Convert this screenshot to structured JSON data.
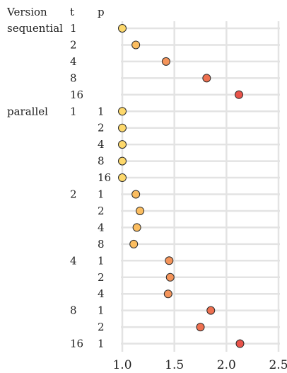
{
  "chart_data": {
    "type": "scatter",
    "orientation": "horizontal dot plot",
    "headers": [
      "Version",
      "t",
      "p"
    ],
    "xlim": [
      1.0,
      2.5
    ],
    "xticks": [
      1.0,
      1.5,
      2.0,
      2.5
    ],
    "xtick_labels": [
      "1.0",
      "1.5",
      "2.0",
      "2.5"
    ],
    "grid": true,
    "colors": {
      "low": "#fdd86b",
      "mid": "#f9a75a",
      "high": "#e8534a"
    },
    "rows": [
      {
        "version": "sequential",
        "t": "1",
        "p": "",
        "value": 1.0,
        "color": "#fdd86b"
      },
      {
        "version": "",
        "t": "2",
        "p": "",
        "value": 1.13,
        "color": "#fbbd60"
      },
      {
        "version": "",
        "t": "4",
        "p": "",
        "value": 1.42,
        "color": "#f4945a"
      },
      {
        "version": "",
        "t": "8",
        "p": "",
        "value": 1.81,
        "color": "#ee7050"
      },
      {
        "version": "",
        "t": "16",
        "p": "",
        "value": 2.12,
        "color": "#e8534a"
      },
      {
        "version": "parallel",
        "t": "1",
        "p": "1",
        "value": 1.0,
        "color": "#fdd86b"
      },
      {
        "version": "",
        "t": "",
        "p": "2",
        "value": 1.0,
        "color": "#fdd86b"
      },
      {
        "version": "",
        "t": "",
        "p": "4",
        "value": 1.0,
        "color": "#fdd86b"
      },
      {
        "version": "",
        "t": "",
        "p": "8",
        "value": 1.0,
        "color": "#fdd86b"
      },
      {
        "version": "",
        "t": "",
        "p": "16",
        "value": 1.0,
        "color": "#fdd86b"
      },
      {
        "version": "",
        "t": "2",
        "p": "1",
        "value": 1.13,
        "color": "#fbbd60"
      },
      {
        "version": "",
        "t": "",
        "p": "2",
        "value": 1.17,
        "color": "#fbbd60"
      },
      {
        "version": "",
        "t": "",
        "p": "4",
        "value": 1.14,
        "color": "#fbbd60"
      },
      {
        "version": "",
        "t": "",
        "p": "8",
        "value": 1.11,
        "color": "#fbbd60"
      },
      {
        "version": "",
        "t": "4",
        "p": "1",
        "value": 1.45,
        "color": "#f4945a"
      },
      {
        "version": "",
        "t": "",
        "p": "2",
        "value": 1.46,
        "color": "#f4945a"
      },
      {
        "version": "",
        "t": "",
        "p": "4",
        "value": 1.44,
        "color": "#f4945a"
      },
      {
        "version": "",
        "t": "8",
        "p": "1",
        "value": 1.85,
        "color": "#ee7050"
      },
      {
        "version": "",
        "t": "",
        "p": "2",
        "value": 1.75,
        "color": "#ee7050"
      },
      {
        "version": "",
        "t": "16",
        "p": "1",
        "value": 2.13,
        "color": "#e8534a"
      }
    ]
  }
}
